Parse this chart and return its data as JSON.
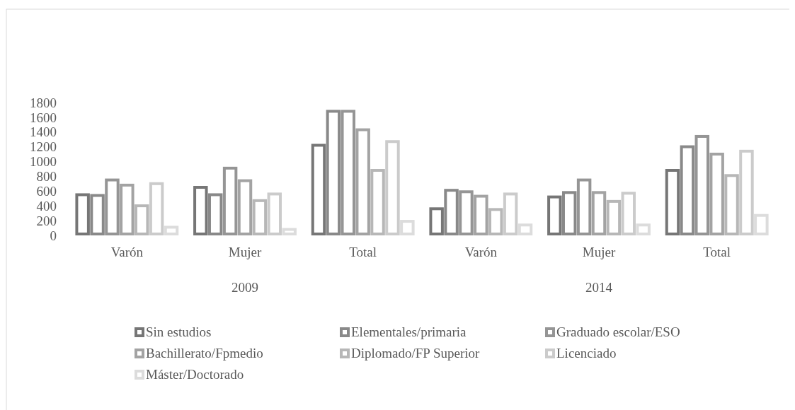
{
  "chart_data": {
    "type": "bar",
    "categories": [
      "Varón",
      "Mujer",
      "Total",
      "Varón",
      "Mujer",
      "Total"
    ],
    "annotations": [
      "2009",
      "2014"
    ],
    "series": [
      {
        "name": "Sin estudios",
        "color": "#767676",
        "values": [
          570,
          670,
          1240,
          380,
          540,
          900
        ]
      },
      {
        "name": "Elementales/primaria",
        "color": "#898989",
        "values": [
          560,
          570,
          1700,
          630,
          600,
          1220
        ]
      },
      {
        "name": "Graduado escolar/ESO",
        "color": "#959595",
        "values": [
          770,
          930,
          1700,
          610,
          770,
          1360
        ]
      },
      {
        "name": "Bachillerato/Fpmedio",
        "color": "#a3a3a3",
        "values": [
          700,
          760,
          1450,
          550,
          600,
          1120
        ]
      },
      {
        "name": "Diplomado/FP Superior",
        "color": "#b7b7b7",
        "values": [
          420,
          490,
          900,
          370,
          480,
          830
        ]
      },
      {
        "name": "Licenciado",
        "color": "#cbcbcb",
        "values": [
          720,
          580,
          1290,
          580,
          590,
          1160
        ]
      },
      {
        "name": "Máster/Doctorado",
        "color": "#dcdcdc",
        "values": [
          130,
          100,
          210,
          160,
          160,
          290
        ]
      }
    ],
    "ylim": [
      0,
      1800
    ],
    "yticks": [
      0,
      200,
      400,
      600,
      800,
      1000,
      1200,
      1400,
      1600,
      1800
    ],
    "grid": false,
    "legend": "bottom"
  }
}
